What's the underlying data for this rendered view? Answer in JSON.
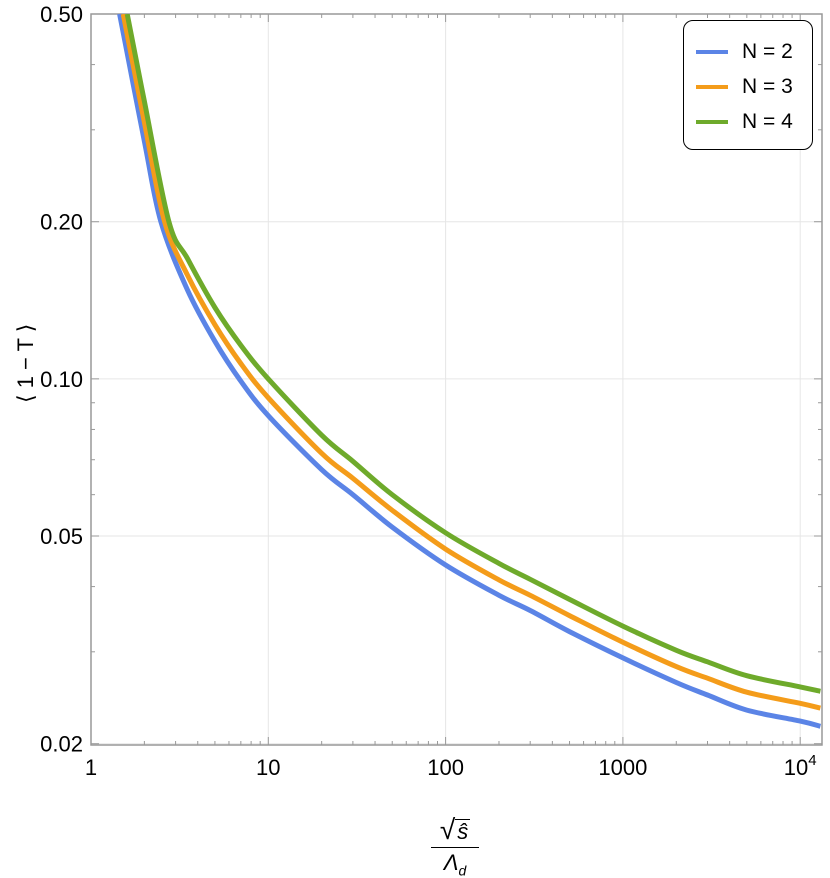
{
  "chart_data": {
    "type": "line",
    "title": "",
    "xlabel": "√ŝ / Λ_d",
    "ylabel": "⟨1 − T⟩",
    "xscale": "log",
    "yscale": "log",
    "xlim": [
      1,
      13000
    ],
    "ylim": [
      0.02,
      0.5
    ],
    "grid": true,
    "legend_position": "top-right",
    "x_ticks": [
      1,
      10,
      100,
      1000,
      10000
    ],
    "x_tick_labels": [
      "1",
      "10",
      "100",
      "1000",
      "10^4"
    ],
    "y_ticks": [
      0.02,
      0.05,
      0.1,
      0.2,
      0.5
    ],
    "y_tick_labels": [
      "0.02",
      "0.05",
      "0.10",
      "0.20",
      "0.50"
    ],
    "series": [
      {
        "name": "N = 2",
        "color": "#5b84e6",
        "x": [
          1.45,
          2.0,
          2.48,
          3.5,
          5,
          7,
          10,
          20,
          30,
          50,
          100,
          200,
          300,
          500,
          1000,
          2000,
          3000,
          5000,
          10000,
          13000
        ],
        "values": [
          0.5,
          0.285,
          0.2,
          0.148,
          0.118,
          0.099,
          0.085,
          0.067,
          0.06,
          0.052,
          0.044,
          0.0385,
          0.036,
          0.0328,
          0.0292,
          0.0262,
          0.0248,
          0.0232,
          0.0221,
          0.0216
        ]
      },
      {
        "name": "N = 3",
        "color": "#f49c1a",
        "x": [
          1.52,
          2.0,
          2.6,
          3.5,
          5,
          7,
          10,
          20,
          30,
          50,
          100,
          200,
          300,
          500,
          1000,
          2000,
          3000,
          5000,
          10000,
          13000
        ],
        "values": [
          0.5,
          0.31,
          0.2,
          0.158,
          0.127,
          0.107,
          0.092,
          0.072,
          0.0645,
          0.056,
          0.0472,
          0.0412,
          0.0385,
          0.0352,
          0.0313,
          0.0281,
          0.0267,
          0.0251,
          0.0239,
          0.0234
        ]
      },
      {
        "name": "N = 4",
        "color": "#6eaa2b",
        "x": [
          1.6,
          2.0,
          2.75,
          3.5,
          5,
          7,
          10,
          20,
          30,
          50,
          100,
          200,
          300,
          500,
          1000,
          2000,
          3000,
          5000,
          10000,
          13000
        ],
        "values": [
          0.5,
          0.34,
          0.2,
          0.17,
          0.137,
          0.116,
          0.1,
          0.078,
          0.0695,
          0.06,
          0.0507,
          0.0443,
          0.0413,
          0.0378,
          0.0336,
          0.0302,
          0.0287,
          0.027,
          0.0257,
          0.0252
        ]
      }
    ]
  },
  "legend": {
    "items": [
      {
        "label": "N = 2",
        "color": "#5b84e6"
      },
      {
        "label": "N = 3",
        "color": "#f49c1a"
      },
      {
        "label": "N = 4",
        "color": "#6eaa2b"
      }
    ]
  },
  "axes": {
    "ylabel": "⟨ 1 − T ⟩",
    "xlabel_radicand": "ŝ",
    "xlabel_denominator": "Λ",
    "xlabel_denominator_sub": "d",
    "sqrt_symbol": "√"
  }
}
